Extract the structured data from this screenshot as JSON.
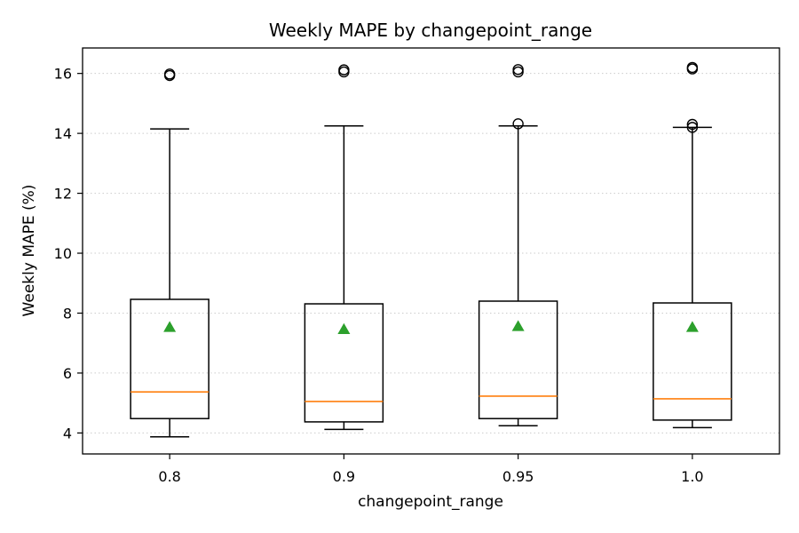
{
  "chart_data": {
    "type": "box",
    "title": "Weekly MAPE by changepoint_range",
    "xlabel": "changepoint_range",
    "ylabel": "Weekly MAPE (%)",
    "ylim": [
      3.3,
      16.85
    ],
    "yticks": [
      4,
      6,
      8,
      10,
      12,
      14,
      16
    ],
    "grid": "y-dotted",
    "colors": {
      "box": "#000000",
      "median": "#ff7f0e",
      "mean": "#2ca02c",
      "grid": "#cccccc"
    },
    "categories": [
      "0.8",
      "0.9",
      "0.95",
      "1.0"
    ],
    "boxes": [
      {
        "label": "0.8",
        "whisker_low": 3.87,
        "q1": 4.48,
        "median": 5.37,
        "q3": 8.46,
        "whisker_high": 14.15,
        "mean": 7.53,
        "outliers": [
          15.93,
          15.98
        ]
      },
      {
        "label": "0.9",
        "whisker_low": 4.12,
        "q1": 4.37,
        "median": 5.05,
        "q3": 8.31,
        "whisker_high": 14.25,
        "mean": 7.46,
        "outliers": [
          16.05,
          16.12
        ]
      },
      {
        "label": "0.95",
        "whisker_low": 4.24,
        "q1": 4.48,
        "median": 5.23,
        "q3": 8.4,
        "whisker_high": 14.25,
        "mean": 7.56,
        "outliers": [
          14.32,
          16.05,
          16.13
        ]
      },
      {
        "label": "1.0",
        "whisker_low": 4.18,
        "q1": 4.43,
        "median": 5.14,
        "q3": 8.34,
        "whisker_high": 14.2,
        "mean": 7.53,
        "outliers": [
          14.2,
          14.3,
          16.15,
          16.2
        ]
      }
    ]
  }
}
